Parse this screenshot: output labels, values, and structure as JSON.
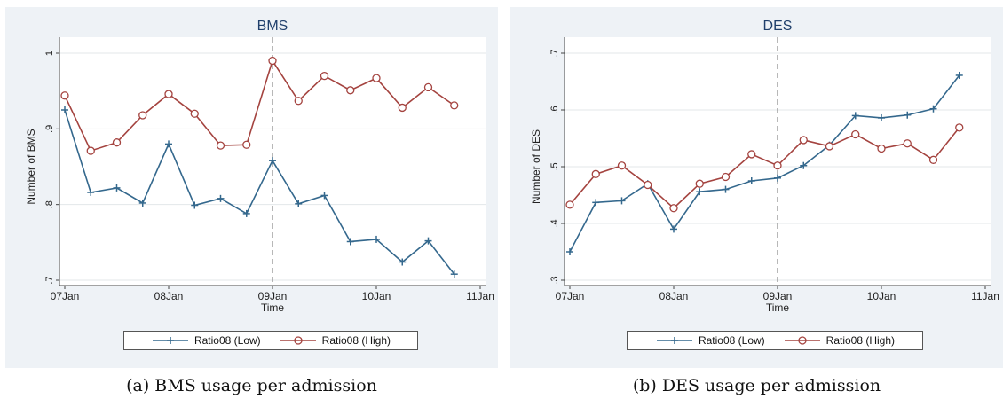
{
  "chart_data": [
    {
      "type": "line",
      "title": "BMS",
      "xlabel": "Time",
      "ylabel": "Number of BMS",
      "x_ticks": [
        "07Jan",
        "08Jan",
        "09Jan",
        "10Jan",
        "11Jan"
      ],
      "y_ticks": [
        ".7",
        ".8",
        ".9",
        "1"
      ],
      "ylim": [
        0.7,
        1.0
      ],
      "xlim": [
        0,
        4
      ],
      "vline": 2,
      "grid": true,
      "legend_position": "bottom",
      "series": [
        {
          "name": "Ratio08 (Low)",
          "color": "#34688d",
          "marker": "plus",
          "x": [
            0,
            0.25,
            0.5,
            0.75,
            1,
            1.25,
            1.5,
            1.75,
            2,
            2.25,
            2.5,
            2.75,
            3,
            3.25,
            3.5,
            3.75
          ],
          "values": [
            0.925,
            0.816,
            0.822,
            0.802,
            0.88,
            0.799,
            0.808,
            0.788,
            0.858,
            0.801,
            0.812,
            0.751,
            0.754,
            0.724,
            0.752,
            0.708
          ]
        },
        {
          "name": "Ratio08 (High)",
          "color": "#a4433f",
          "marker": "circle",
          "x": [
            0,
            0.25,
            0.5,
            0.75,
            1,
            1.25,
            1.5,
            1.75,
            2,
            2.25,
            2.5,
            2.75,
            3,
            3.25,
            3.5,
            3.75
          ],
          "values": [
            0.944,
            0.871,
            0.882,
            0.918,
            0.946,
            0.92,
            0.878,
            0.879,
            0.99,
            0.937,
            0.97,
            0.951,
            0.967,
            0.928,
            0.955,
            0.931
          ]
        }
      ],
      "caption": "(a) BMS usage per admission"
    },
    {
      "type": "line",
      "title": "DES",
      "xlabel": "Time",
      "ylabel": "Number of DES",
      "x_ticks": [
        "07Jan",
        "08Jan",
        "09Jan",
        "10Jan",
        "11Jan"
      ],
      "y_ticks": [
        ".3",
        ".4",
        ".5",
        ".6",
        ".7"
      ],
      "ylim": [
        0.3,
        0.7
      ],
      "xlim": [
        0,
        4
      ],
      "vline": 2,
      "grid": true,
      "legend_position": "bottom",
      "series": [
        {
          "name": "Ratio08 (Low)",
          "color": "#34688d",
          "marker": "plus",
          "x": [
            0,
            0.25,
            0.5,
            0.75,
            1,
            1.25,
            1.5,
            1.75,
            2,
            2.25,
            2.5,
            2.75,
            3,
            3.25,
            3.5,
            3.75
          ],
          "values": [
            0.35,
            0.437,
            0.44,
            0.47,
            0.39,
            0.456,
            0.46,
            0.475,
            0.48,
            0.502,
            0.538,
            0.59,
            0.586,
            0.591,
            0.602,
            0.661
          ]
        },
        {
          "name": "Ratio08 (High)",
          "color": "#a4433f",
          "marker": "circle",
          "x": [
            0,
            0.25,
            0.5,
            0.75,
            1,
            1.25,
            1.5,
            1.75,
            2,
            2.25,
            2.5,
            2.75,
            3,
            3.25,
            3.5,
            3.75
          ],
          "values": [
            0.433,
            0.487,
            0.502,
            0.468,
            0.427,
            0.47,
            0.482,
            0.522,
            0.502,
            0.547,
            0.536,
            0.557,
            0.532,
            0.541,
            0.512,
            0.569
          ]
        }
      ],
      "caption": "(b) DES usage per admission"
    }
  ]
}
